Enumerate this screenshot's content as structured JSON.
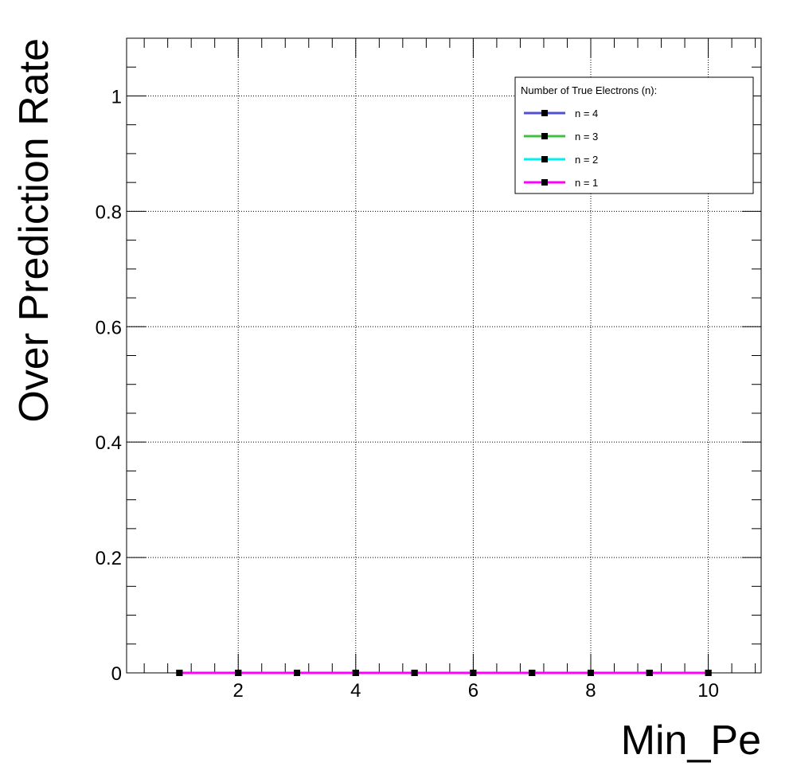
{
  "chart_data": {
    "type": "line",
    "title": "",
    "xlabel": "Min_Pe",
    "ylabel": "Over Prediction Rate",
    "xlim": [
      0.1,
      10.9
    ],
    "ylim": [
      0,
      1.1
    ],
    "x_ticks": [
      2,
      4,
      6,
      8,
      10
    ],
    "y_ticks": [
      0,
      0.2,
      0.4,
      0.6,
      0.8,
      1
    ],
    "grid": true,
    "legend": {
      "title": "Number of True Electrons (n):",
      "placement": "top-right"
    },
    "x": [
      1,
      2,
      3,
      4,
      5,
      6,
      7,
      8,
      9,
      10
    ],
    "series": [
      {
        "name": "n = 4",
        "color": "#5050d0",
        "values": [
          0,
          0,
          0,
          0,
          0,
          0,
          0,
          0,
          0,
          0
        ]
      },
      {
        "name": "n = 3",
        "color": "#40c040",
        "values": [
          0,
          0,
          0,
          0,
          0,
          0,
          0,
          0,
          0,
          0
        ]
      },
      {
        "name": "n = 2",
        "color": "#00f0f0",
        "values": [
          0,
          0,
          0,
          0,
          0,
          0,
          0,
          0,
          0,
          0
        ]
      },
      {
        "name": "n = 1",
        "color": "#ff00ff",
        "values": [
          0,
          0,
          0,
          0,
          0,
          0,
          0,
          0,
          0,
          0
        ]
      }
    ]
  }
}
